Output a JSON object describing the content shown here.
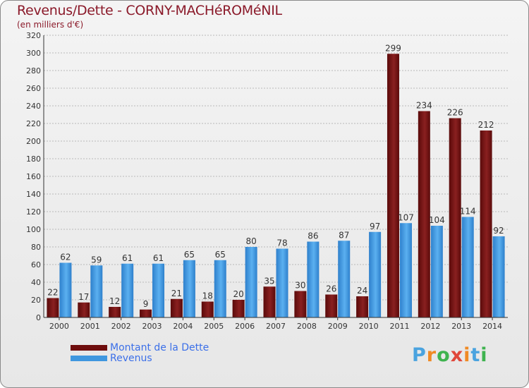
{
  "title": "Revenus/Dette - CORNY-MACHéROMéNIL",
  "subtitle": "(en milliers d'€)",
  "colors": {
    "dette": "#6e0d0d",
    "revenus": "#3f97df",
    "text": "#8b1a2a",
    "legend_text": "#3b6fe8"
  },
  "legend": {
    "dette_label": "Montant de la Dette",
    "revenus_label": "Revenus"
  },
  "logo": {
    "text": "Proxiti"
  },
  "chart_data": {
    "type": "bar",
    "title": "Revenus/Dette - CORNY-MACHéROMéNIL",
    "subtitle": "(en milliers d'€)",
    "categories": [
      "2000",
      "2001",
      "2002",
      "2003",
      "2004",
      "2005",
      "2006",
      "2007",
      "2008",
      "2009",
      "2010",
      "2011",
      "2012",
      "2013",
      "2014"
    ],
    "series": [
      {
        "name": "Montant de la Dette",
        "values": [
          22,
          17,
          12,
          9,
          21,
          18,
          20,
          35,
          30,
          26,
          24,
          299,
          234,
          226,
          212
        ]
      },
      {
        "name": "Revenus",
        "values": [
          62,
          59,
          61,
          61,
          65,
          65,
          80,
          78,
          86,
          87,
          97,
          107,
          104,
          114,
          92
        ]
      }
    ],
    "ylim": [
      0,
      320
    ],
    "yticks": [
      0,
      20,
      40,
      60,
      80,
      100,
      120,
      140,
      160,
      180,
      200,
      220,
      240,
      260,
      280,
      300,
      320
    ],
    "grid": true,
    "legend_position": "bottom-left"
  }
}
